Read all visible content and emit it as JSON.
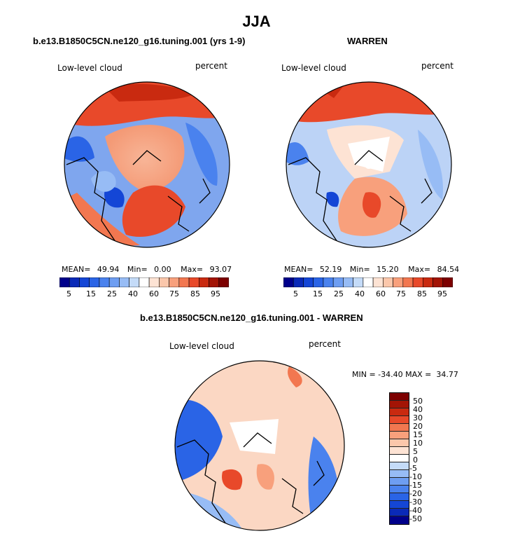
{
  "title": "JJA",
  "panels": [
    {
      "id": "model",
      "subtitle": "b.e13.B1850C5CN.ne120_g16.tuning.001 (yrs 1-9)",
      "variable": "Low-level cloud",
      "units": "percent",
      "stats": {
        "mean": "49.94",
        "min": "0.00",
        "max": "93.07"
      },
      "stats_labels": {
        "mean": "MEAN=",
        "min": "Min=",
        "max": "Max="
      }
    },
    {
      "id": "obs",
      "subtitle": "WARREN",
      "variable": "Low-level cloud",
      "units": "percent",
      "stats": {
        "mean": "52.19",
        "min": "15.20",
        "max": "84.54"
      },
      "stats_labels": {
        "mean": "MEAN=",
        "min": "Min=",
        "max": "Max="
      }
    },
    {
      "id": "diff",
      "subtitle": "b.e13.B1850C5CN.ne120_g16.tuning.001 - WARREN",
      "variable": "Low-level cloud",
      "units": "percent",
      "range_text": "MIN = -34.40 MAX =  34.77"
    }
  ],
  "colorbar_abs": {
    "colors": [
      "#00008b",
      "#0a2ab8",
      "#1446d6",
      "#2a64e6",
      "#4a82ee",
      "#6e9ef2",
      "#97bcf5",
      "#c4dbf8",
      "#ffffff",
      "#fde3d4",
      "#fbc7ab",
      "#f8a07c",
      "#f27750",
      "#e8492a",
      "#c92a10",
      "#a31405",
      "#7d0000"
    ],
    "tick_labels": [
      "5",
      "15",
      "25",
      "40",
      "60",
      "75",
      "85",
      "95"
    ]
  },
  "colorbar_diff": {
    "colors": [
      "#7d0000",
      "#a31405",
      "#c92a10",
      "#e8492a",
      "#f27750",
      "#f8a07c",
      "#fbc7ab",
      "#fde3d4",
      "#ffffff",
      "#c4dbf8",
      "#97bcf5",
      "#6e9ef2",
      "#4a82ee",
      "#2a64e6",
      "#1446d6",
      "#0a2ab8",
      "#00008b"
    ],
    "tick_labels": [
      "50",
      "40",
      "30",
      "20",
      "15",
      "10",
      "5",
      "0",
      "-5",
      "-10",
      "-15",
      "-20",
      "-30",
      "-40",
      "-50"
    ]
  },
  "colors": {
    "land_outline": "#000000",
    "missing": "#ffffff"
  }
}
